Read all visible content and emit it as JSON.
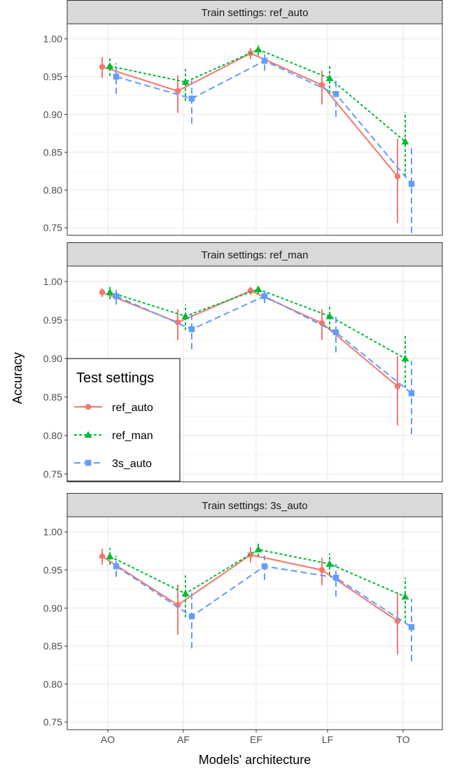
{
  "chart_data": {
    "type": "line",
    "xlabel": "Models' architecture",
    "ylabel": "Accuracy",
    "categories": [
      "AO",
      "AF",
      "EF",
      "LF",
      "TO"
    ],
    "ylim": [
      0.74,
      1.02
    ],
    "yticks": [
      "0.75",
      "0.80",
      "0.85",
      "0.90",
      "0.95",
      "1.00"
    ],
    "grid": true,
    "legend": {
      "title": "Test settings",
      "placement": "inside-left-middle",
      "entries": [
        "ref_auto",
        "ref_man",
        "3s_auto"
      ]
    },
    "series_styles": [
      {
        "name": "ref_auto",
        "color": "#F8766D",
        "dash": "solid",
        "marker": "circle"
      },
      {
        "name": "ref_man",
        "color": "#00BA38",
        "dash": "dotted",
        "marker": "triangle"
      },
      {
        "name": "3s_auto",
        "color": "#619CFF",
        "dash": "dashed",
        "marker": "square"
      }
    ],
    "panels": [
      {
        "strip": "Train settings: ref_auto",
        "series": [
          {
            "name": "ref_auto",
            "values": [
              0.963,
              0.931,
              0.981,
              0.939,
              0.818
            ],
            "low": [
              0.948,
              0.902,
              0.973,
              0.913,
              0.756
            ],
            "high": [
              0.976,
              0.952,
              0.988,
              0.958,
              0.868
            ]
          },
          {
            "name": "ref_man",
            "values": [
              0.964,
              0.943,
              0.986,
              0.948,
              0.864
            ],
            "low": [
              0.951,
              0.918,
              0.978,
              0.928,
              0.818
            ],
            "high": [
              0.975,
              0.96,
              0.992,
              0.964,
              0.903
            ]
          },
          {
            "name": "3s_auto",
            "values": [
              0.95,
              0.921,
              0.971,
              0.927,
              0.808
            ],
            "low": [
              0.927,
              0.888,
              0.958,
              0.897,
              0.743
            ],
            "high": [
              0.968,
              0.945,
              0.982,
              0.95,
              0.86
            ]
          }
        ]
      },
      {
        "strip": "Train settings: ref_man",
        "series": [
          {
            "name": "ref_auto",
            "values": [
              0.986,
              0.947,
              0.988,
              0.946,
              0.864
            ],
            "low": [
              0.98,
              0.924,
              0.983,
              0.924,
              0.813
            ],
            "high": [
              0.991,
              0.964,
              0.993,
              0.964,
              0.903
            ]
          },
          {
            "name": "ref_man",
            "values": [
              0.986,
              0.955,
              0.99,
              0.955,
              0.9
            ],
            "low": [
              0.977,
              0.937,
              0.984,
              0.938,
              0.862
            ],
            "high": [
              0.993,
              0.97,
              0.995,
              0.97,
              0.93
            ]
          },
          {
            "name": "3s_auto",
            "values": [
              0.981,
              0.938,
              0.981,
              0.934,
              0.855
            ],
            "low": [
              0.97,
              0.912,
              0.972,
              0.908,
              0.802
            ],
            "high": [
              0.989,
              0.96,
              0.988,
              0.955,
              0.897
            ]
          }
        ]
      },
      {
        "strip": "Train settings: 3s_auto",
        "series": [
          {
            "name": "ref_auto",
            "values": [
              0.968,
              0.904,
              0.97,
              0.95,
              0.883
            ],
            "low": [
              0.957,
              0.865,
              0.96,
              0.93,
              0.839
            ],
            "high": [
              0.978,
              0.931,
              0.98,
              0.966,
              0.92
            ]
          },
          {
            "name": "ref_man",
            "values": [
              0.968,
              0.919,
              0.977,
              0.958,
              0.915
            ],
            "low": [
              0.957,
              0.888,
              0.968,
              0.944,
              0.88
            ],
            "high": [
              0.979,
              0.943,
              0.985,
              0.972,
              0.94
            ]
          },
          {
            "name": "3s_auto",
            "values": [
              0.955,
              0.889,
              0.955,
              0.94,
              0.875
            ],
            "low": [
              0.941,
              0.847,
              0.937,
              0.915,
              0.83
            ],
            "high": [
              0.969,
              0.92,
              0.969,
              0.958,
              0.912
            ]
          }
        ]
      }
    ]
  }
}
